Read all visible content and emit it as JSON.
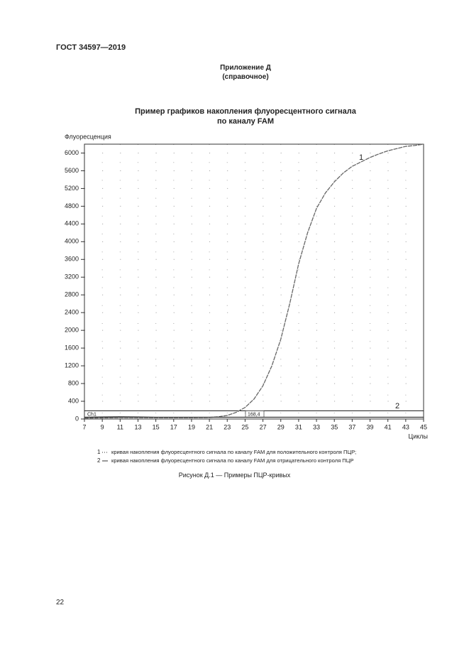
{
  "header": {
    "standard": "ГОСТ 34597—2019",
    "appendix": "Приложение Д",
    "appendix_note": "(справочное)"
  },
  "chart_data": {
    "type": "line",
    "title": "Пример графиков накопления флуоресцентного сигнала",
    "subtitle": "по каналу FAM",
    "y_label": "Флуоресценция",
    "x_label": "Циклы",
    "x": [
      7,
      9,
      11,
      13,
      15,
      17,
      19,
      21,
      22,
      23,
      24,
      25,
      26,
      27,
      28,
      29,
      30,
      31,
      32,
      33,
      34,
      35,
      36,
      37,
      38,
      39,
      40,
      41,
      42,
      43,
      44,
      45
    ],
    "series": [
      {
        "name": "кривая накопления флуоресцентного сигнала по каналу FAM для положительного контроля ПЦР;",
        "label": "1",
        "color": "#666666",
        "values": [
          20,
          25,
          30,
          30,
          30,
          30,
          30,
          35,
          50,
          80,
          150,
          260,
          450,
          750,
          1200,
          1800,
          2600,
          3500,
          4200,
          4750,
          5100,
          5350,
          5550,
          5700,
          5800,
          5900,
          5980,
          6050,
          6100,
          6150,
          6170,
          6200
        ]
      },
      {
        "name": "кривая накопления флуоресцентного сигнала по каналу FAM для отрицательного контроля ПЦР",
        "label": "2",
        "color": "#333333",
        "values": [
          40,
          45,
          50,
          45,
          40,
          40,
          40,
          40,
          40,
          40,
          40,
          40,
          40,
          40,
          40,
          40,
          40,
          40,
          40,
          40,
          40,
          40,
          40,
          40,
          40,
          40,
          40,
          40,
          40,
          40,
          40,
          40
        ]
      }
    ],
    "threshold": {
      "name": "Ch1",
      "value": 168.4,
      "label": "168,4"
    },
    "xlim": [
      7,
      45
    ],
    "xticks": [
      7,
      9,
      11,
      13,
      15,
      17,
      19,
      21,
      23,
      25,
      27,
      29,
      31,
      33,
      35,
      37,
      39,
      41,
      43,
      45
    ],
    "ylim": [
      0,
      6200
    ],
    "yticks": [
      0,
      400,
      800,
      1200,
      1600,
      2000,
      2400,
      2800,
      3200,
      3600,
      4000,
      4400,
      4800,
      5200,
      5600,
      6000
    ],
    "grid": true
  },
  "caption": "Рисунок Д.1 — Примеры ПЦР-кривых",
  "page_number": "22"
}
